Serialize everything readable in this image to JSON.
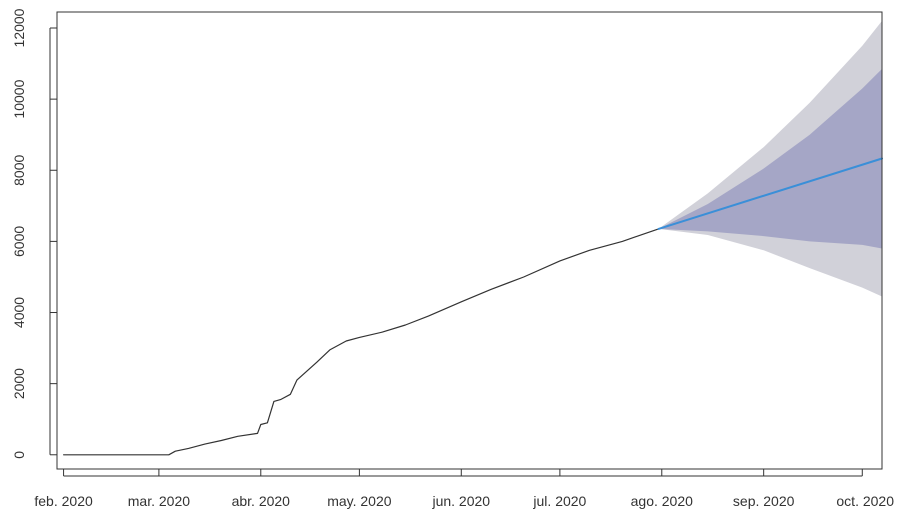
{
  "chart_data": {
    "type": "line",
    "title": "",
    "xlabel": "",
    "ylabel": "",
    "ylim": [
      -400,
      12450
    ],
    "grid": false,
    "x_ticks": [
      "feb. 2020",
      "mar. 2020",
      "abr. 2020",
      "may. 2020",
      "jun. 2020",
      "jul. 2020",
      "ago. 2020",
      "sep. 2020",
      "oct. 2020"
    ],
    "y_ticks": [
      "0",
      "2000",
      "4000",
      "6000",
      "8000",
      "10000",
      "12000"
    ],
    "y_tick_values": [
      0,
      2000,
      4000,
      6000,
      8000,
      10000,
      12000
    ],
    "x_tick_dates": [
      "2020-02-01",
      "2020-03-01",
      "2020-04-01",
      "2020-05-01",
      "2020-06-01",
      "2020-07-01",
      "2020-08-01",
      "2020-09-01",
      "2020-10-01"
    ],
    "xlim": [
      "2020-01-30",
      "2020-10-07"
    ],
    "series": [
      {
        "role": "observed",
        "color": "#333333",
        "points": [
          [
            "2020-02-01",
            0
          ],
          [
            "2020-03-04",
            0
          ],
          [
            "2020-03-06",
            100
          ],
          [
            "2020-03-10",
            180
          ],
          [
            "2020-03-15",
            300
          ],
          [
            "2020-03-20",
            400
          ],
          [
            "2020-03-25",
            520
          ],
          [
            "2020-03-31",
            600
          ],
          [
            "2020-04-01",
            850
          ],
          [
            "2020-04-03",
            900
          ],
          [
            "2020-04-05",
            1500
          ],
          [
            "2020-04-07",
            1550
          ],
          [
            "2020-04-10",
            1700
          ],
          [
            "2020-04-12",
            2100
          ],
          [
            "2020-04-15",
            2350
          ],
          [
            "2020-04-18",
            2600
          ],
          [
            "2020-04-22",
            2950
          ],
          [
            "2020-04-27",
            3200
          ],
          [
            "2020-05-01",
            3300
          ],
          [
            "2020-05-08",
            3450
          ],
          [
            "2020-05-15",
            3650
          ],
          [
            "2020-05-22",
            3900
          ],
          [
            "2020-06-01",
            4300
          ],
          [
            "2020-06-10",
            4650
          ],
          [
            "2020-06-20",
            5000
          ],
          [
            "2020-07-01",
            5450
          ],
          [
            "2020-07-10",
            5750
          ],
          [
            "2020-07-20",
            6000
          ],
          [
            "2020-07-31",
            6350
          ]
        ]
      },
      {
        "role": "forecast",
        "color": "#3a8fd8",
        "points": [
          [
            "2020-07-31",
            6350
          ],
          [
            "2020-10-07",
            8330
          ]
        ]
      }
    ],
    "intervals": [
      {
        "level": "outer",
        "color": "#d1d1d9",
        "lower": [
          [
            "2020-07-31",
            6350
          ],
          [
            "2020-08-15",
            6180
          ],
          [
            "2020-09-01",
            5750
          ],
          [
            "2020-09-15",
            5250
          ],
          [
            "2020-10-01",
            4700
          ],
          [
            "2020-10-07",
            4450
          ]
        ],
        "upper": [
          [
            "2020-07-31",
            6350
          ],
          [
            "2020-08-15",
            7350
          ],
          [
            "2020-09-01",
            8650
          ],
          [
            "2020-09-15",
            9900
          ],
          [
            "2020-10-01",
            11500
          ],
          [
            "2020-10-07",
            12200
          ]
        ]
      },
      {
        "level": "inner",
        "color": "#a5a6c6",
        "lower": [
          [
            "2020-07-31",
            6350
          ],
          [
            "2020-08-15",
            6280
          ],
          [
            "2020-09-01",
            6150
          ],
          [
            "2020-09-15",
            6000
          ],
          [
            "2020-10-01",
            5900
          ],
          [
            "2020-10-07",
            5800
          ]
        ],
        "upper": [
          [
            "2020-07-31",
            6350
          ],
          [
            "2020-08-15",
            7050
          ],
          [
            "2020-09-01",
            8050
          ],
          [
            "2020-09-15",
            9000
          ],
          [
            "2020-10-01",
            10300
          ],
          [
            "2020-10-07",
            10850
          ]
        ]
      }
    ]
  }
}
